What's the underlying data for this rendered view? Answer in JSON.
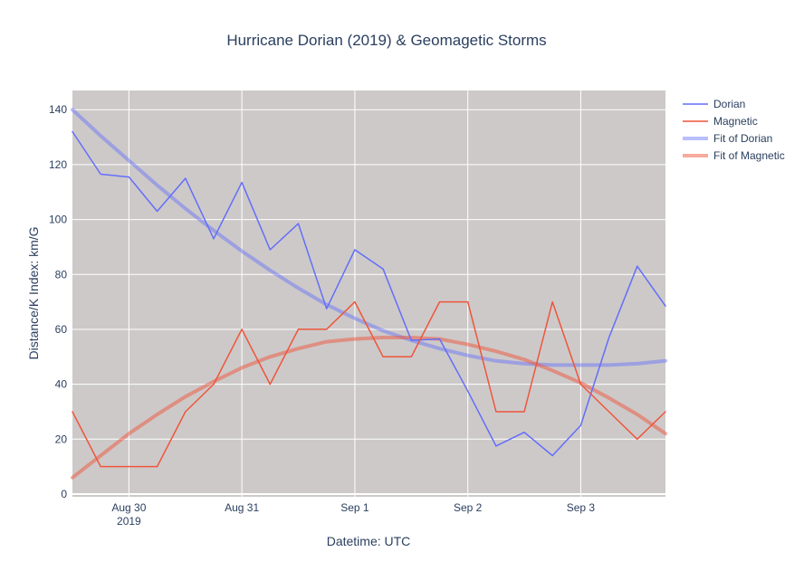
{
  "chart_data": {
    "type": "line",
    "title": "Hurricane Dorian (2019) & Geomagetic Storms",
    "xlabel": "Datetime: UTC",
    "ylabel": "Distance/K Index: km/G",
    "x_start": "2019-08-29 12:00",
    "x_step_hours": 6,
    "xlim": [
      "2019-08-29 12:00",
      "2019-09-03 18:00"
    ],
    "ylim": [
      -1,
      147
    ],
    "x_ticks": [
      {
        "x": "2019-08-30 00:00",
        "label": "Aug 30",
        "sublabel": "2019"
      },
      {
        "x": "2019-08-31 00:00",
        "label": "Aug 31",
        "sublabel": ""
      },
      {
        "x": "2019-09-01 00:00",
        "label": "Sep 1",
        "sublabel": ""
      },
      {
        "x": "2019-09-02 00:00",
        "label": "Sep 2",
        "sublabel": ""
      },
      {
        "x": "2019-09-03 00:00",
        "label": "Sep 3",
        "sublabel": ""
      }
    ],
    "y_ticks": [
      0,
      20,
      40,
      60,
      80,
      100,
      120,
      140
    ],
    "grid": true,
    "legend_position": "top-right",
    "plot_background": "#cdc9c9",
    "series": [
      {
        "name": "Dorian",
        "color": "#636efa",
        "width": 1.5,
        "opacity": 1,
        "values": [
          132,
          116.5,
          115.5,
          103,
          115,
          93,
          113.5,
          89,
          98.5,
          67.5,
          89,
          82,
          56,
          56.5,
          37.5,
          17.5,
          22.5,
          14,
          25,
          57,
          83,
          68.5
        ]
      },
      {
        "name": "Magnetic",
        "color": "#ef553b",
        "width": 1.5,
        "opacity": 1,
        "values": [
          30,
          10,
          10,
          10,
          30,
          40,
          60,
          40,
          60,
          60,
          70,
          50,
          50,
          70,
          70,
          30,
          30,
          70,
          40,
          30,
          20,
          30
        ]
      },
      {
        "name": "Fit of Dorian",
        "color": "#636efa",
        "width": 4,
        "opacity": 0.45,
        "values": [
          140,
          130.5,
          121.5,
          112.5,
          104,
          96,
          88.5,
          81.5,
          75,
          69,
          64,
          59.5,
          56,
          53,
          50.5,
          48.5,
          47.5,
          47,
          47,
          47,
          47.5,
          48.5
        ]
      },
      {
        "name": "Fit of Magnetic",
        "color": "#ef553b",
        "width": 4,
        "opacity": 0.5,
        "values": [
          6,
          14,
          22,
          29,
          35.5,
          41,
          46,
          50,
          53,
          55.5,
          56.5,
          57,
          57,
          56.5,
          54.5,
          52,
          49,
          45,
          40.5,
          35,
          29,
          22
        ]
      }
    ]
  }
}
